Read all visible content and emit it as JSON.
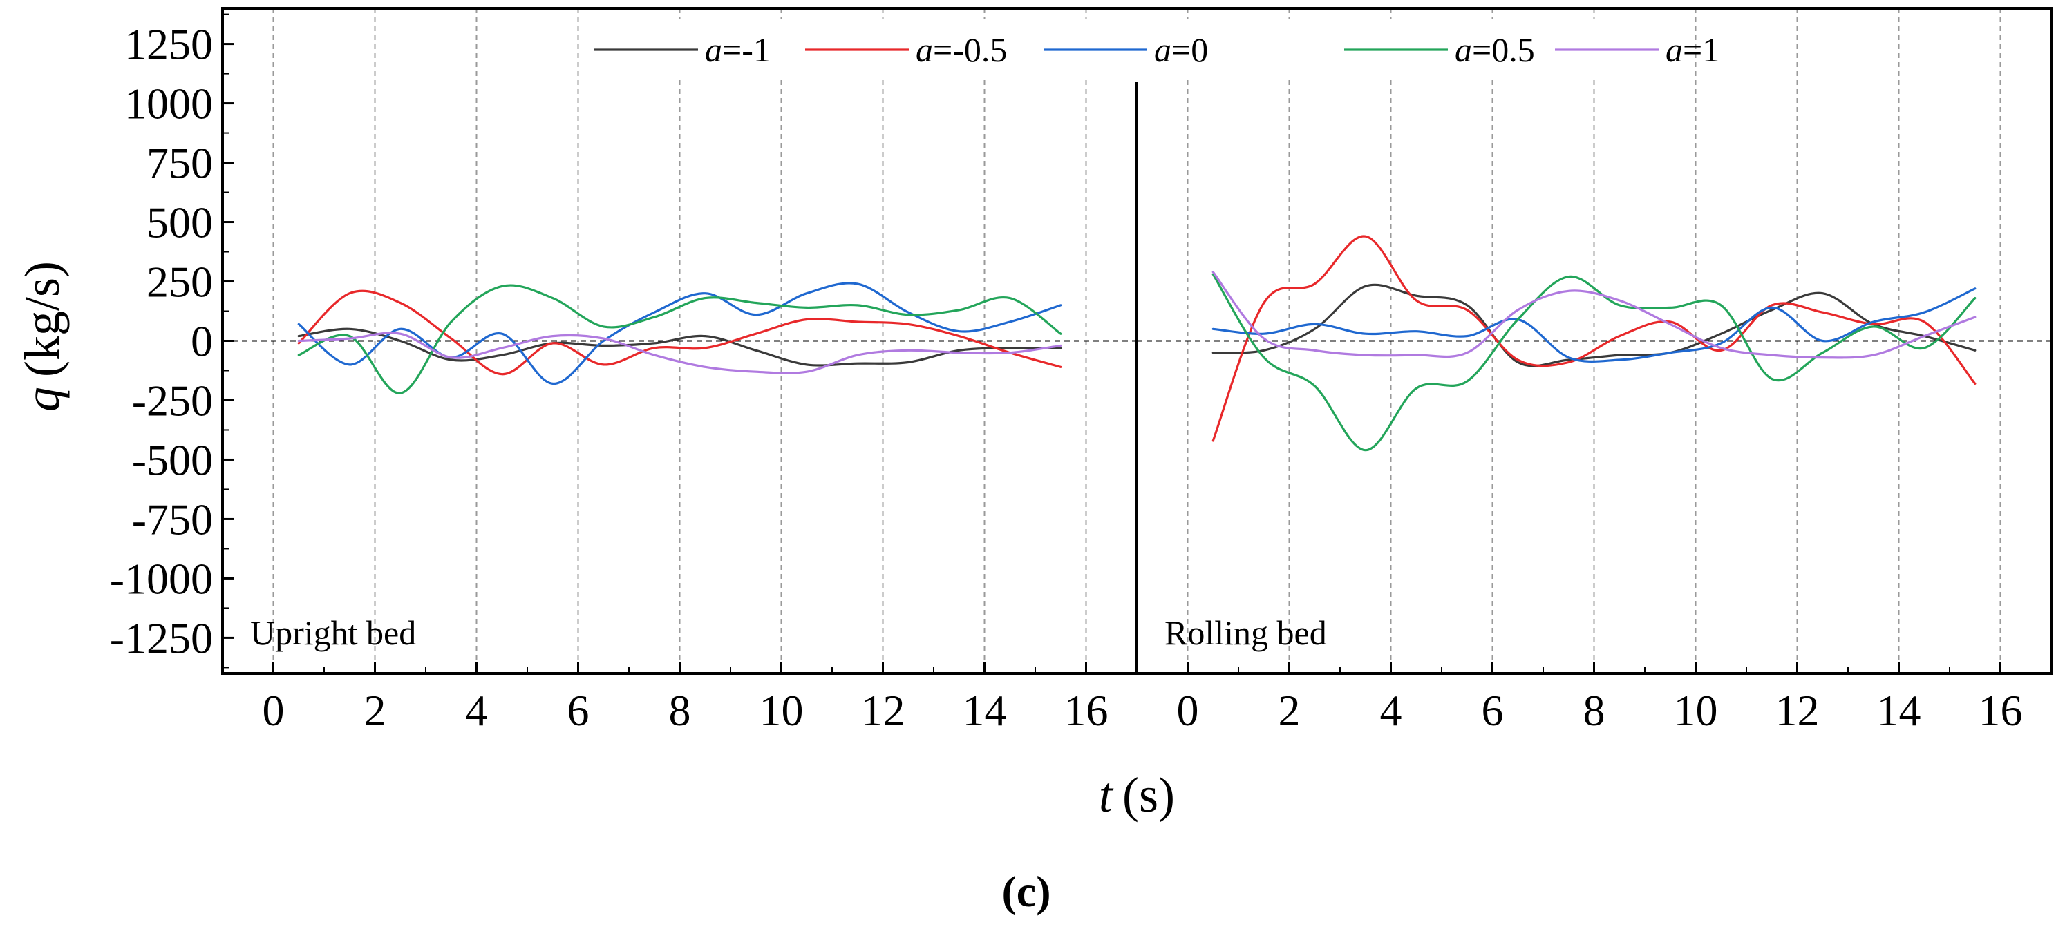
{
  "chart_data": {
    "type": "line",
    "caption": "(c)",
    "xlabel": {
      "var": "t",
      "unit": "(s)"
    },
    "ylabel": {
      "var": "q",
      "unit": "(kg/s)"
    },
    "ylim": [
      -1400,
      1400
    ],
    "yticks": [
      1250,
      1000,
      750,
      500,
      250,
      0,
      -250,
      -500,
      -750,
      -1000,
      -1250
    ],
    "xlim": [
      -1,
      17
    ],
    "xticks": [
      0,
      2,
      4,
      6,
      8,
      10,
      12,
      14,
      16
    ],
    "grid": true,
    "legend_position": "top-center",
    "legend": [
      {
        "sym": "a",
        "text": "=-1",
        "color": "#3a3a3a"
      },
      {
        "sym": "a",
        "text": "=-0.5",
        "color": "#e8282a"
      },
      {
        "sym": "a",
        "text": "=0",
        "color": "#1f68d0"
      },
      {
        "sym": "a",
        "text": "=0.5",
        "color": "#23a55a"
      },
      {
        "sym": "a",
        "text": "=1",
        "color": "#b07ae0"
      }
    ],
    "x": [
      0.5,
      1.5,
      2.5,
      3.5,
      4.5,
      5.5,
      6.5,
      7.5,
      8.5,
      9.5,
      10.5,
      11.5,
      12.5,
      13.5,
      14.5,
      15.5
    ],
    "panels": [
      {
        "label": "Upright bed",
        "series": [
          {
            "name": "a=-1",
            "color": "#3a3a3a",
            "values": [
              20,
              50,
              0,
              -80,
              -60,
              -10,
              -20,
              -10,
              20,
              -40,
              -100,
              -95,
              -90,
              -40,
              -30,
              -30
            ]
          },
          {
            "name": "a=-0.5",
            "color": "#e8282a",
            "values": [
              -10,
              200,
              160,
              10,
              -140,
              -10,
              -100,
              -30,
              -30,
              30,
              90,
              80,
              70,
              20,
              -50,
              -110
            ]
          },
          {
            "name": "a=0",
            "color": "#1f68d0",
            "values": [
              70,
              -100,
              50,
              -70,
              30,
              -180,
              0,
              120,
              200,
              110,
              200,
              240,
              120,
              40,
              80,
              150
            ]
          },
          {
            "name": "a=0.5",
            "color": "#23a55a",
            "values": [
              -60,
              20,
              -220,
              80,
              230,
              180,
              60,
              100,
              180,
              160,
              140,
              150,
              110,
              130,
              180,
              30
            ]
          },
          {
            "name": "a=1",
            "color": "#b07ae0",
            "values": [
              0,
              10,
              30,
              -70,
              -30,
              20,
              10,
              -60,
              -110,
              -130,
              -130,
              -60,
              -40,
              -50,
              -50,
              -20
            ]
          }
        ]
      },
      {
        "label": "Rolling bed",
        "series": [
          {
            "name": "a=-1",
            "color": "#3a3a3a",
            "values": [
              -50,
              -40,
              50,
              230,
              190,
              150,
              -90,
              -80,
              -60,
              -50,
              30,
              130,
              200,
              70,
              20,
              -40
            ]
          },
          {
            "name": "a=-0.5",
            "color": "#e8282a",
            "values": [
              -420,
              160,
              240,
              440,
              170,
              130,
              -80,
              -90,
              20,
              80,
              -40,
              150,
              120,
              70,
              80,
              -180
            ]
          },
          {
            "name": "a=0",
            "color": "#1f68d0",
            "values": [
              50,
              30,
              70,
              30,
              40,
              20,
              90,
              -70,
              -80,
              -50,
              -10,
              140,
              0,
              80,
              120,
              220
            ]
          },
          {
            "name": "a=0.5",
            "color": "#23a55a",
            "values": [
              280,
              -70,
              -190,
              -460,
              -200,
              -170,
              90,
              270,
              150,
              140,
              150,
              -160,
              -50,
              60,
              -30,
              180
            ]
          },
          {
            "name": "a=1",
            "color": "#b07ae0",
            "values": [
              290,
              10,
              -40,
              -60,
              -60,
              -50,
              130,
              210,
              170,
              70,
              -30,
              -60,
              -70,
              -60,
              20,
              100
            ]
          }
        ]
      }
    ]
  }
}
